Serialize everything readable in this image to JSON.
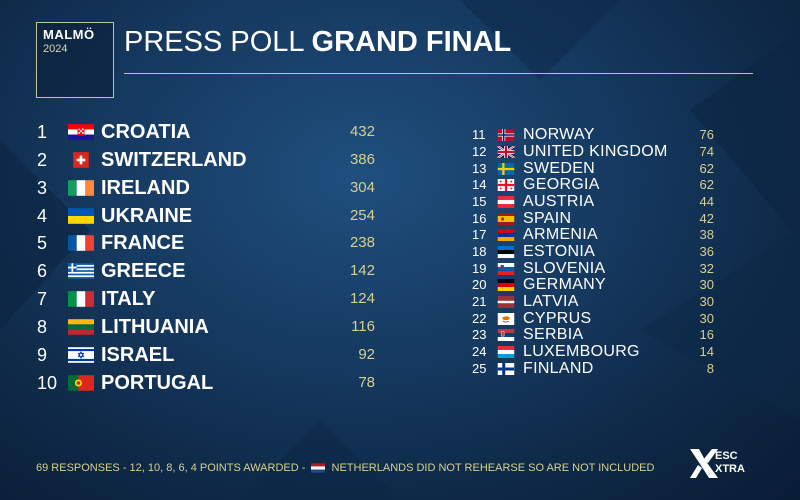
{
  "logo": {
    "city": "MALMÖ",
    "year": "2024"
  },
  "title": {
    "light": "PRESS POLL",
    "bold": "GRAND FINAL"
  },
  "top10": [
    {
      "rank": "1",
      "country": "CROATIA",
      "points": "432",
      "flag": "croatia-flag"
    },
    {
      "rank": "2",
      "country": "SWITZERLAND",
      "points": "386",
      "flag": "switzerland-flag"
    },
    {
      "rank": "3",
      "country": "IRELAND",
      "points": "304",
      "flag": "ireland-flag"
    },
    {
      "rank": "4",
      "country": "UKRAINE",
      "points": "254",
      "flag": "ukraine-flag"
    },
    {
      "rank": "5",
      "country": "FRANCE",
      "points": "238",
      "flag": "france-flag"
    },
    {
      "rank": "6",
      "country": "GREECE",
      "points": "142",
      "flag": "greece-flag"
    },
    {
      "rank": "7",
      "country": "ITALY",
      "points": "124",
      "flag": "italy-flag"
    },
    {
      "rank": "8",
      "country": "LITHUANIA",
      "points": "116",
      "flag": "lithuania-flag"
    },
    {
      "rank": "9",
      "country": "ISRAEL",
      "points": "92",
      "flag": "israel-flag"
    },
    {
      "rank": "10",
      "country": "PORTUGAL",
      "points": "78",
      "flag": "portugal-flag"
    }
  ],
  "rest": [
    {
      "rank": "11",
      "country": "NORWAY",
      "points": "76",
      "flag": "norway-flag"
    },
    {
      "rank": "12",
      "country": "UNITED KINGDOM",
      "points": "74",
      "flag": "uk-flag"
    },
    {
      "rank": "13",
      "country": "SWEDEN",
      "points": "62",
      "flag": "sweden-flag"
    },
    {
      "rank": "14",
      "country": "GEORGIA",
      "points": "62",
      "flag": "georgia-flag"
    },
    {
      "rank": "15",
      "country": "AUSTRIA",
      "points": "44",
      "flag": "austria-flag"
    },
    {
      "rank": "16",
      "country": "SPAIN",
      "points": "42",
      "flag": "spain-flag"
    },
    {
      "rank": "17",
      "country": "ARMENIA",
      "points": "38",
      "flag": "armenia-flag"
    },
    {
      "rank": "18",
      "country": "ESTONIA",
      "points": "36",
      "flag": "estonia-flag"
    },
    {
      "rank": "19",
      "country": "SLOVENIA",
      "points": "32",
      "flag": "slovenia-flag"
    },
    {
      "rank": "20",
      "country": "GERMANY",
      "points": "30",
      "flag": "germany-flag"
    },
    {
      "rank": "21",
      "country": "LATVIA",
      "points": "30",
      "flag": "latvia-flag"
    },
    {
      "rank": "22",
      "country": "CYPRUS",
      "points": "30",
      "flag": "cyprus-flag"
    },
    {
      "rank": "23",
      "country": "SERBIA",
      "points": "16",
      "flag": "serbia-flag"
    },
    {
      "rank": "24",
      "country": "LUXEMBOURG",
      "points": "14",
      "flag": "luxembourg-flag"
    },
    {
      "rank": "25",
      "country": "FINLAND",
      "points": "8",
      "flag": "finland-flag"
    }
  ],
  "footer": {
    "left": "69 RESPONSES - 12, 10, 8, 6, 4 POINTS AWARDED -",
    "right": "NETHERLANDS DID NOT REHEARSE SO ARE NOT INCLUDED",
    "flag": "netherlands-flag"
  },
  "brand": {
    "line1": "ESC",
    "line2": "XTRA"
  },
  "colors": {
    "accent": "#d7cf8e",
    "background": "#163a61",
    "rule": "#c8c49a"
  }
}
